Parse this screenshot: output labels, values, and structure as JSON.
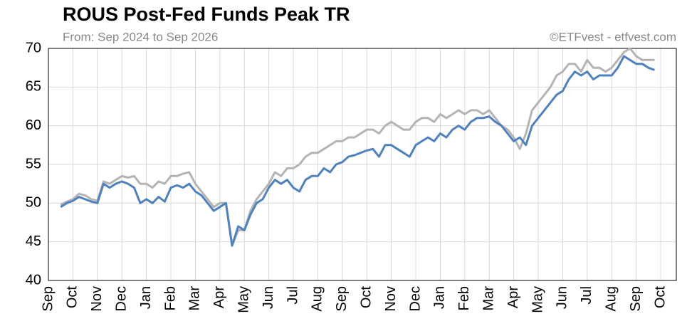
{
  "chart_data": {
    "type": "line",
    "title": "ROUS Post-Fed Funds Peak TR",
    "subtitle": "From: Sep 2024 to Sep 2026",
    "annotation": "©ETFvest - etfvest.com",
    "categories": [
      "Sep",
      null,
      null,
      null,
      "Oct",
      null,
      null,
      null,
      "Nov",
      null,
      null,
      null,
      "Dec",
      null,
      null,
      null,
      "Jan",
      null,
      null,
      null,
      "Feb",
      null,
      null,
      null,
      "Mar",
      null,
      null,
      null,
      "Apr",
      null,
      null,
      null,
      "May",
      null,
      null,
      null,
      "Jun",
      null,
      null,
      null,
      "Jul",
      null,
      null,
      null,
      "Aug",
      null,
      null,
      null,
      "Sep",
      null,
      null,
      null,
      "Oct",
      null,
      null,
      null,
      "Nov",
      null,
      null,
      null,
      "Dec",
      null,
      null,
      null,
      "Jan",
      null,
      null,
      null,
      "Feb",
      null,
      null,
      null,
      "Mar",
      null,
      null,
      null,
      "Apr",
      null,
      null,
      null,
      "May",
      null,
      null,
      null,
      "Jun",
      null,
      null,
      null,
      "Jul",
      null,
      null,
      null,
      "Aug",
      null,
      null,
      null,
      "Sep",
      null,
      null,
      null,
      "Oct"
    ],
    "series": [
      {
        "color": "#b4b4b4",
        "values": [
          null,
          null,
          49.8,
          50.2,
          50.5,
          51.2,
          51.0,
          50.5,
          50.3,
          52.8,
          52.5,
          53.0,
          53.5,
          53.3,
          53.5,
          52.5,
          52.5,
          52.0,
          52.8,
          52.5,
          53.5,
          53.5,
          53.8,
          54.0,
          52.5,
          51.5,
          50.5,
          49.5,
          50.0,
          50.0,
          44.5,
          46.5,
          46.5,
          49.0,
          50.5,
          51.5,
          52.5,
          54.0,
          53.5,
          54.5,
          54.5,
          55.0,
          56.0,
          56.5,
          56.5,
          57.0,
          57.5,
          58.0,
          58.0,
          58.5,
          58.5,
          59.0,
          59.5,
          59.5,
          59.0,
          60.0,
          60.5,
          60.0,
          59.5,
          59.5,
          60.5,
          61.0,
          61.0,
          60.5,
          61.5,
          61.0,
          61.5,
          62.0,
          61.5,
          62.0,
          62.0,
          61.5,
          62.0,
          61.0,
          60.0,
          59.5,
          58.5,
          57.0,
          59.0,
          62.0,
          63.0,
          64.0,
          65.0,
          66.5,
          67.0,
          68.0,
          68.0,
          67.0,
          68.5,
          67.5,
          67.5,
          67.0,
          67.5,
          68.5,
          69.5,
          70.0,
          69.0,
          68.5,
          68.5,
          68.5,
          null
        ]
      },
      {
        "color": "#4f81bd",
        "values": [
          null,
          null,
          49.5,
          50.0,
          50.3,
          50.8,
          50.5,
          50.2,
          50.0,
          52.5,
          52.0,
          52.5,
          52.8,
          52.5,
          52.0,
          50.0,
          50.5,
          50.0,
          50.8,
          50.2,
          52.0,
          52.3,
          52.0,
          52.5,
          51.5,
          51.0,
          50.0,
          49.0,
          49.5,
          50.0,
          44.5,
          47.0,
          46.5,
          48.5,
          50.0,
          50.5,
          52.0,
          53.0,
          52.5,
          53.0,
          52.0,
          51.5,
          53.0,
          53.5,
          53.5,
          54.5,
          54.0,
          55.0,
          55.3,
          56.0,
          56.2,
          56.5,
          56.8,
          57.0,
          56.0,
          57.5,
          57.5,
          57.0,
          56.5,
          56.0,
          57.5,
          58.0,
          58.5,
          58.0,
          59.0,
          58.5,
          59.5,
          60.0,
          59.5,
          60.5,
          61.0,
          61.0,
          61.2,
          60.5,
          60.0,
          59.0,
          58.0,
          58.5,
          57.5,
          60.0,
          61.0,
          62.0,
          63.0,
          64.0,
          64.5,
          66.0,
          67.0,
          66.5,
          67.0,
          66.0,
          66.5,
          66.5,
          66.5,
          67.5,
          69.0,
          68.5,
          68.0,
          68.0,
          67.5,
          67.2,
          null
        ]
      }
    ],
    "ylim": [
      40,
      70
    ],
    "yticks": [
      40,
      45,
      50,
      55,
      60,
      65,
      70
    ],
    "grid": true
  }
}
